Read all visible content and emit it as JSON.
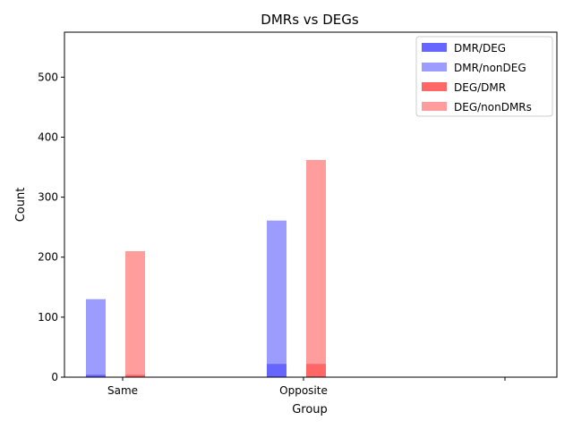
{
  "chart_data": {
    "type": "bar",
    "title": "DMRs vs DEGs",
    "xlabel": "Group",
    "ylabel": "Count",
    "categories": [
      "Same",
      "Opposite",
      ""
    ],
    "ylim": [
      0,
      575
    ],
    "yticks": [
      0,
      100,
      200,
      300,
      400,
      500
    ],
    "grid": false,
    "legend_position": "top-right",
    "series": [
      {
        "name": "DMR/DEG",
        "color": "#6666ff",
        "values": [
          4,
          22,
          0
        ]
      },
      {
        "name": "DMR/nonDEG",
        "color": "#9c9cff",
        "values": [
          130,
          261,
          0
        ]
      },
      {
        "name": "DEG/DMR",
        "color": "#ff6666",
        "values": [
          4,
          22,
          0
        ]
      },
      {
        "name": "DEG/nonDMRs",
        "color": "#ff9c9c",
        "values": [
          210,
          362,
          0
        ]
      }
    ]
  }
}
